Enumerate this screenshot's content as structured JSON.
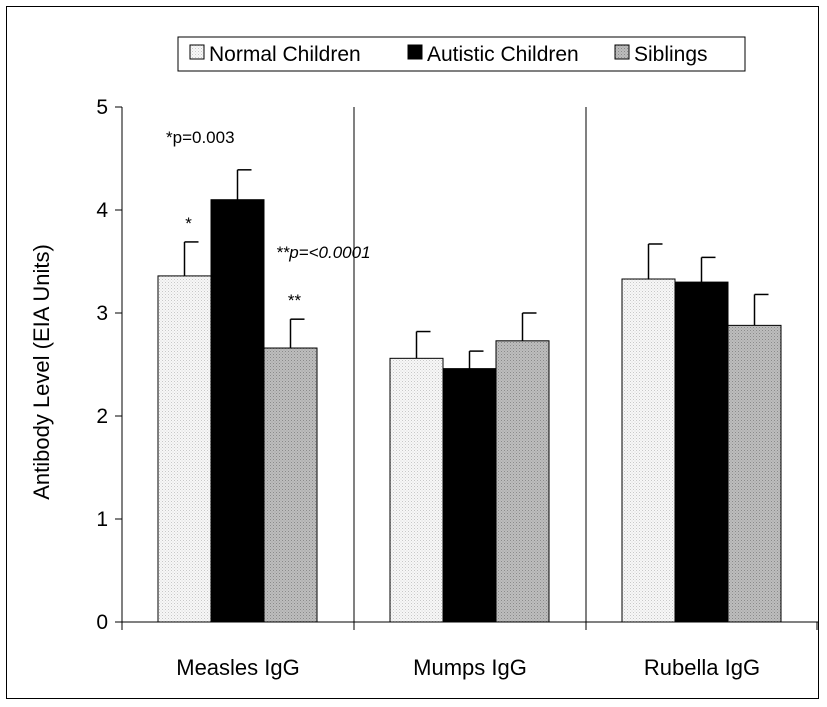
{
  "chart_data": {
    "type": "bar",
    "title": "",
    "xlabel": "",
    "ylabel": "Antibody Level (EIA Units)",
    "ylim": [
      0,
      5
    ],
    "yticks": [
      "0",
      "1",
      "2",
      "3",
      "4",
      "5"
    ],
    "categories": [
      "Measles IgG",
      "Mumps IgG",
      "Rubella IgG"
    ],
    "series": [
      {
        "name": "Normal Children",
        "values": [
          3.36,
          2.56,
          3.33
        ],
        "errors": [
          0.33,
          0.26,
          0.34
        ],
        "color": "#f2f2f2",
        "pattern": "dotted-light"
      },
      {
        "name": "Autistic Children",
        "values": [
          4.1,
          2.46,
          3.3
        ],
        "errors": [
          0.29,
          0.17,
          0.24
        ],
        "color": "#000000",
        "pattern": "solid"
      },
      {
        "name": "Siblings",
        "values": [
          2.66,
          2.73,
          2.88
        ],
        "errors": [
          0.28,
          0.27,
          0.3
        ],
        "color": "#b4b4b4",
        "pattern": "dotted-gray"
      }
    ],
    "grid": false,
    "legend_position": "top",
    "significance_marks": [
      {
        "category_index": 0,
        "series_index": 0,
        "text": "*"
      },
      {
        "category_index": 0,
        "series_index": 2,
        "text": "**"
      }
    ],
    "annotations": [
      {
        "text": "*p=0.003",
        "style": "normal"
      },
      {
        "text": "**p=<0.0001",
        "style": "italic"
      }
    ]
  }
}
